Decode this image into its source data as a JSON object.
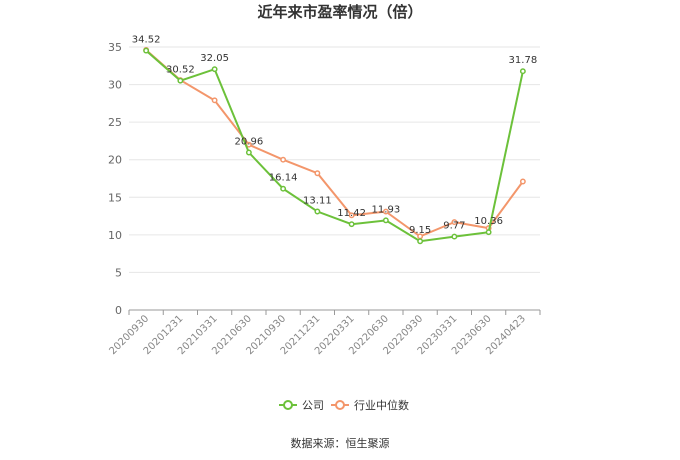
{
  "chart_data": {
    "type": "line",
    "title": "近年来市盈率情况（倍）",
    "categories": [
      "20200930",
      "20201231",
      "20210331",
      "20210630",
      "20210930",
      "20211231",
      "20220331",
      "20220630",
      "20220930",
      "20230331",
      "20230630",
      "20240423"
    ],
    "series": [
      {
        "name": "公司",
        "color": "#6cc13a",
        "values": [
          34.52,
          30.52,
          32.05,
          20.96,
          16.14,
          13.11,
          11.42,
          11.93,
          9.15,
          9.77,
          10.36,
          31.78
        ]
      },
      {
        "name": "行业中位数",
        "color": "#f3966b",
        "values": [
          34.6,
          30.6,
          27.9,
          22.0,
          20.0,
          18.2,
          12.6,
          13.1,
          9.8,
          11.7,
          10.9,
          17.1
        ]
      }
    ],
    "data_labels": [
      "34.52",
      "30.52",
      "32.05",
      "20.96",
      "16.14",
      "13.11",
      "11.42",
      "11.93",
      "9.15",
      "9.77",
      "10.36",
      "31.78"
    ],
    "ylim": [
      0,
      35
    ],
    "yticks": [
      0,
      5,
      10,
      15,
      20,
      25,
      30,
      35
    ],
    "grid": true,
    "legend_position": "bottom-center"
  },
  "source_text": "数据来源：恒生聚源"
}
